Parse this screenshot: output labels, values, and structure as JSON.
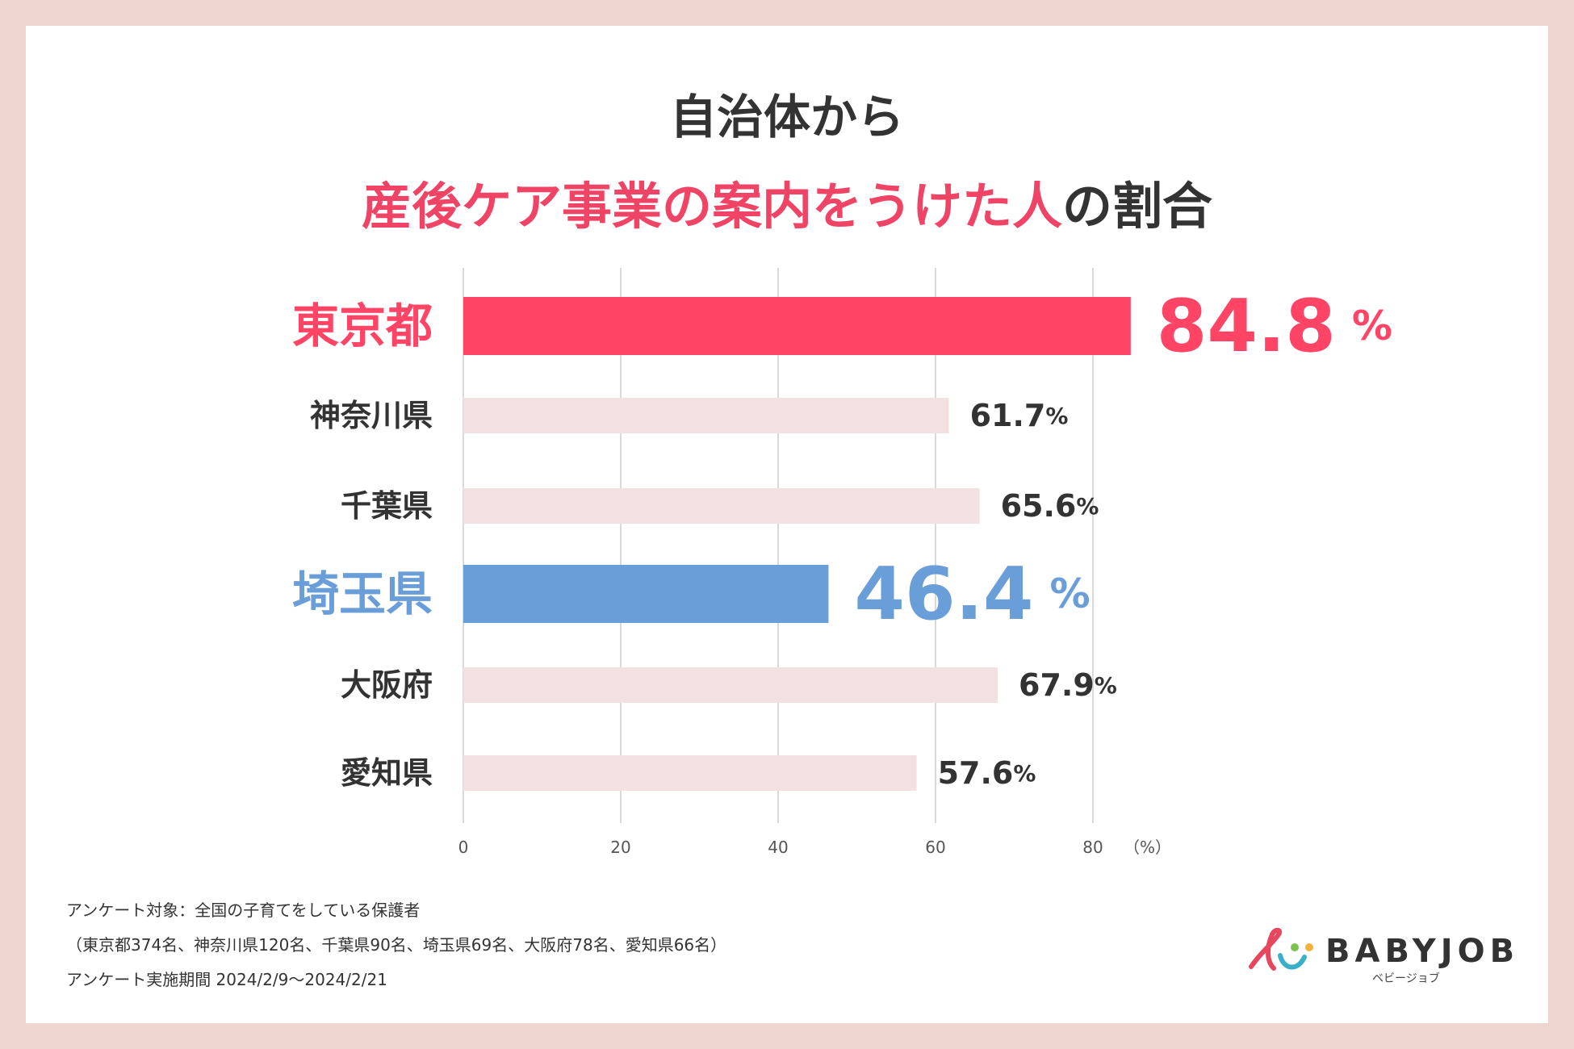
{
  "title": {
    "line1": "自治体から",
    "line2_highlight": "産後ケア事業の案内をうけた人",
    "line2_rest": "の割合"
  },
  "chart_data": {
    "type": "bar",
    "orientation": "horizontal",
    "title": "自治体から産後ケア事業の案内をうけた人の割合",
    "categories": [
      "東京都",
      "神奈川県",
      "千葉県",
      "埼玉県",
      "大阪府",
      "愛知県"
    ],
    "values": [
      84.8,
      61.7,
      65.6,
      46.4,
      67.9,
      57.6
    ],
    "value_labels": [
      "84.8",
      "61.7",
      "65.6",
      "46.4",
      "67.9",
      "57.6"
    ],
    "value_unit": "%",
    "highlighted": [
      "東京都",
      "埼玉県"
    ],
    "xlim": [
      0,
      90
    ],
    "x_ticks": [
      "0",
      "20",
      "40",
      "60",
      "80"
    ],
    "x_tick_values": [
      0,
      20,
      40,
      60,
      80
    ],
    "x_unit_label": "（%）",
    "grid": true,
    "colors": {
      "highlight_tokyo": "#ff4466",
      "highlight_saitama": "#6a9ed8",
      "default_bar": "#f3e1e1",
      "default_text": "#333333",
      "grid": "#d9d9d9"
    }
  },
  "footer": {
    "line1": "アンケート対象：全国の子育てをしている保護者",
    "line2": "（東京都374名、神奈川県120名、千葉県90名、埼玉県69名、大阪府78名、愛知県66名）",
    "line3": "アンケート実施期間 2024/2/9〜2024/2/21"
  },
  "logo": {
    "text": "BABYJOB",
    "sub": "ベビージョブ"
  }
}
